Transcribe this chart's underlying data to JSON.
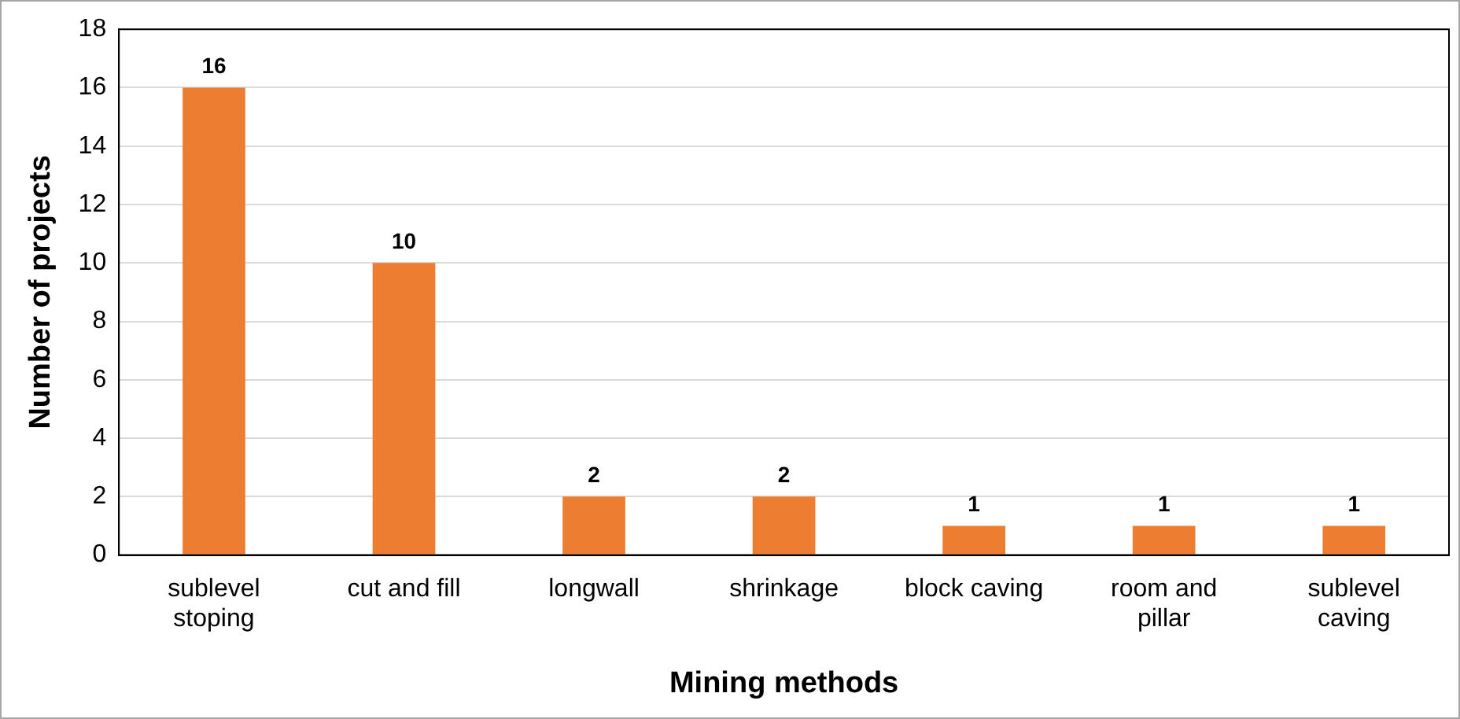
{
  "chart_data": {
    "type": "bar",
    "categories": [
      "sublevel stoping",
      "cut and fill",
      "longwall",
      "shrinkage",
      "block caving",
      "room and pillar",
      "sublevel caving"
    ],
    "values": [
      16,
      10,
      2,
      2,
      1,
      1,
      1
    ],
    "color": "#ed7d31",
    "xlabel": "Mining methods",
    "ylabel": "Number of projects",
    "ylim": [
      0,
      18
    ],
    "yticks": [
      0,
      2,
      4,
      6,
      8,
      10,
      12,
      14,
      16,
      18
    ],
    "grid": "y",
    "data_labels": true
  }
}
